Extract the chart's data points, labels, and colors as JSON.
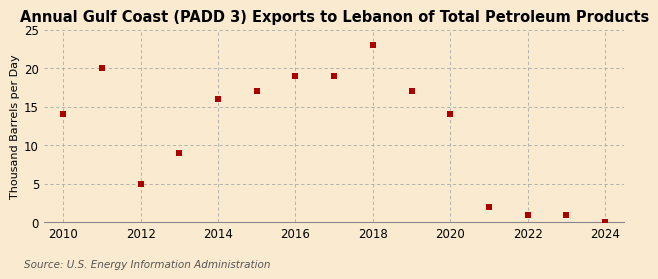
{
  "title": "Annual Gulf Coast (PADD 3) Exports to Lebanon of Total Petroleum Products",
  "ylabel": "Thousand Barrels per Day",
  "source": "Source: U.S. Energy Information Administration",
  "background_color": "#faebd0",
  "plot_bg_color": "#faebd0",
  "years": [
    2010,
    2011,
    2012,
    2013,
    2014,
    2015,
    2016,
    2017,
    2018,
    2019,
    2020,
    2021,
    2022,
    2023,
    2024
  ],
  "values": [
    14,
    20,
    5,
    9,
    16,
    17,
    19,
    19,
    23,
    17,
    14,
    2,
    1,
    1,
    0
  ],
  "marker_color": "#aa0000",
  "marker_size": 22,
  "xlim": [
    2009.5,
    2024.5
  ],
  "ylim": [
    0,
    25
  ],
  "yticks": [
    0,
    5,
    10,
    15,
    20,
    25
  ],
  "xticks": [
    2010,
    2012,
    2014,
    2016,
    2018,
    2020,
    2022,
    2024
  ],
  "grid_color": "#aaaaaa",
  "title_fontsize": 10.5,
  "axis_fontsize": 8.5,
  "ylabel_fontsize": 8,
  "source_fontsize": 7.5
}
